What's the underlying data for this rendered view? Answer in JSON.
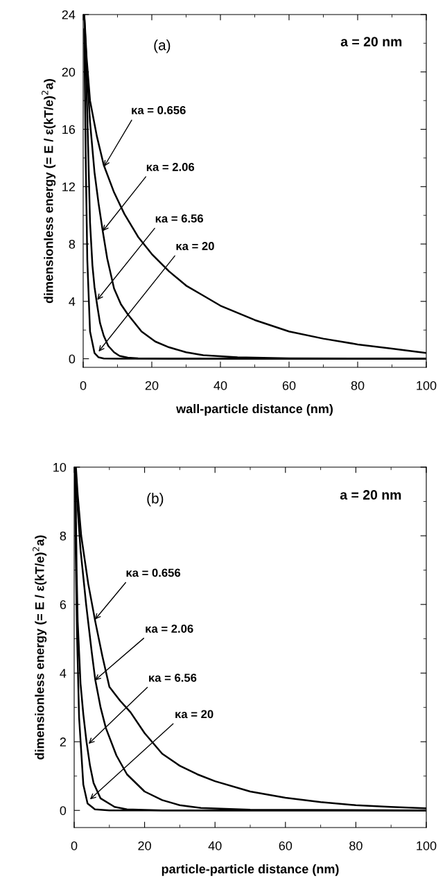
{
  "chart_data": [
    {
      "type": "line",
      "xlabel": "wall-particle distance (nm)",
      "ylabel": "dimensionless energy (= E / ε(kT/e)$^{2}$a)",
      "xlim": [
        0,
        100
      ],
      "ylim": [
        -0.6,
        24
      ],
      "xticks": [
        0,
        20,
        40,
        60,
        80,
        100
      ],
      "yticks": [
        0,
        4,
        8,
        12,
        16,
        20,
        24
      ],
      "grid": false,
      "marker": "none",
      "line_style": "solid",
      "annotations": [
        "(a)",
        "a = 20 nm",
        {
          "text": "κa = 0.656",
          "x": 6.1,
          "y": 13.4
        },
        {
          "text": "κa = 2.06",
          "x": 5.7,
          "y": 8.9
        },
        {
          "text": "κa = 6.56",
          "x": 4.1,
          "y": 4.1
        },
        {
          "text": "κa = 20",
          "x": 4.5,
          "y": 0.5
        }
      ],
      "series": [
        {
          "color": "#000000",
          "x": [
            0.3,
            0.5,
            1,
            2,
            4,
            6,
            9,
            12,
            16,
            20,
            25,
            30,
            35,
            40,
            50,
            60,
            70,
            80,
            90,
            100
          ],
          "values": [
            24,
            23.3,
            21,
            18,
            15.5,
            13.5,
            11.6,
            10.1,
            8.5,
            7.3,
            6.1,
            5.1,
            4.4,
            3.7,
            2.7,
            1.9,
            1.4,
            1.0,
            0.7,
            0.4
          ]
        },
        {
          "color": "#000000",
          "x": [
            0.3,
            0.5,
            1,
            2,
            3.3,
            4.5,
            5.7,
            7,
            9,
            11,
            13,
            17,
            21,
            25,
            30,
            35,
            45,
            60,
            100
          ],
          "values": [
            24,
            23,
            20.5,
            16.5,
            13,
            10.8,
            8.9,
            7,
            4.9,
            3.8,
            3.1,
            1.9,
            1.2,
            0.8,
            0.45,
            0.25,
            0.1,
            0.03,
            0
          ]
        },
        {
          "color": "#000000",
          "x": [
            0.6,
            1.2,
            2,
            2.7,
            3.3,
            4.1,
            4.9,
            6,
            7.3,
            9,
            10.6,
            13,
            16,
            25,
            100
          ],
          "values": [
            22,
            17,
            9.5,
            6.5,
            5,
            3.7,
            2.5,
            1.6,
            0.9,
            0.45,
            0.2,
            0.08,
            0.03,
            0,
            0
          ]
        },
        {
          "color": "#000000",
          "x": [
            0.3,
            0.8,
            1.2,
            2,
            3.3,
            4.5,
            6,
            10,
            100
          ],
          "values": [
            23,
            13,
            6.9,
            1.9,
            0.4,
            0.1,
            0.02,
            0,
            0
          ]
        }
      ]
    },
    {
      "type": "line",
      "xlabel": "particle-particle distance (nm)",
      "ylabel": "dimensionless energy (= E / ε(kT/e)$^{2}$a)",
      "xlim": [
        0,
        100
      ],
      "ylim": [
        -0.5,
        10
      ],
      "xticks": [
        0,
        20,
        40,
        60,
        80,
        100
      ],
      "yticks": [
        0,
        2,
        4,
        6,
        8,
        10
      ],
      "grid": false,
      "marker": "none",
      "line_style": "solid",
      "annotations": [
        "(b)",
        "a = 20 nm",
        {
          "text": "κa = 0.656",
          "x": 5.9,
          "y": 5.56
        },
        {
          "text": "κa = 2.06",
          "x": 5.9,
          "y": 3.79
        },
        {
          "text": "κa = 6.56",
          "x": 4.1,
          "y": 1.94
        },
        {
          "text": "κa = 20",
          "x": 4.5,
          "y": 0.32
        }
      ],
      "series": [
        {
          "color": "#000000",
          "x": [
            0.5,
            1,
            2,
            3,
            4,
            6,
            8,
            10,
            13,
            16,
            20,
            25,
            30,
            35,
            40,
            50,
            60,
            70,
            80,
            90,
            100
          ],
          "values": [
            10,
            9.2,
            8,
            7.3,
            6.6,
            5.5,
            4.5,
            3.6,
            3.2,
            2.86,
            2.25,
            1.65,
            1.3,
            1.05,
            0.85,
            0.55,
            0.37,
            0.24,
            0.15,
            0.1,
            0.06
          ]
        },
        {
          "color": "#000000",
          "x": [
            0.5,
            1,
            1.8,
            3.4,
            5,
            6,
            7.5,
            9,
            12,
            15,
            20,
            25,
            30,
            36,
            50,
            100
          ],
          "values": [
            9.8,
            8.8,
            7.6,
            6,
            4.6,
            3.8,
            3,
            2.4,
            1.6,
            1.05,
            0.55,
            0.3,
            0.15,
            0.07,
            0.02,
            0
          ]
        },
        {
          "color": "#000000",
          "x": [
            0.4,
            0.7,
            1,
            1.8,
            2.6,
            3.5,
            4.5,
            5.5,
            7.5,
            11.5,
            15,
            25,
            100
          ],
          "values": [
            9.5,
            7,
            5.5,
            3.7,
            2.8,
            2.0,
            1.3,
            0.8,
            0.35,
            0.1,
            0.03,
            0,
            0
          ]
        },
        {
          "color": "#000000",
          "x": [
            0.2,
            0.4,
            0.8,
            1.4,
            2.6,
            3.8,
            5.9,
            10,
            100
          ],
          "values": [
            10,
            7.8,
            5.2,
            2.7,
            0.75,
            0.2,
            0.03,
            0,
            0
          ]
        }
      ]
    }
  ]
}
